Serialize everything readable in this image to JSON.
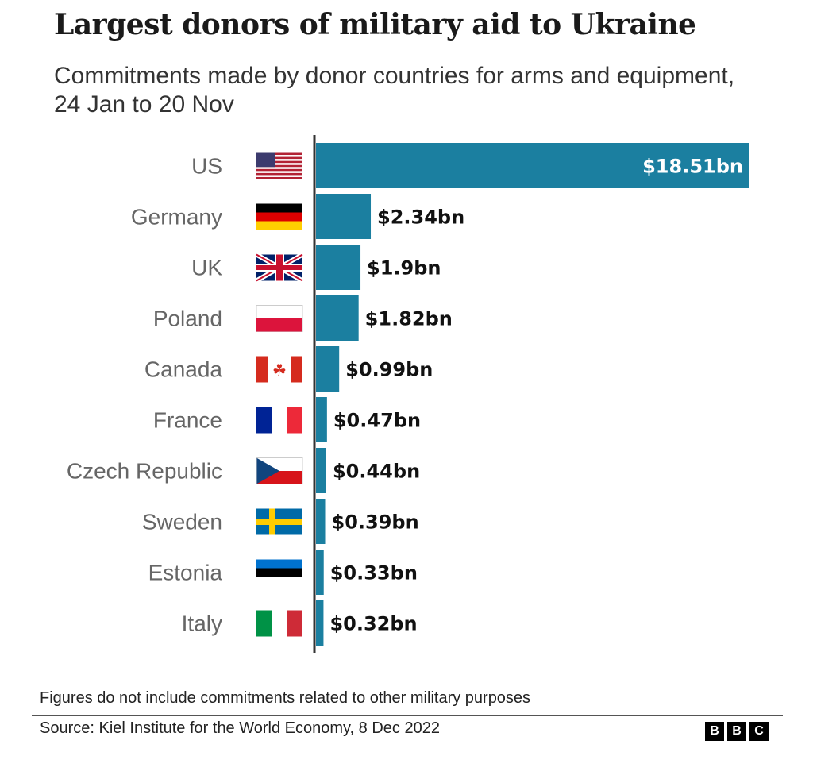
{
  "chart_data": {
    "type": "bar",
    "orientation": "horizontal",
    "title": "Largest donors of military aid to Ukraine",
    "subtitle": "Commitments made by donor countries for arms and equipment, 24 Jan to 20 Nov",
    "unit": "$bn",
    "categories": [
      "US",
      "Germany",
      "UK",
      "Poland",
      "Canada",
      "France",
      "Czech Republic",
      "Sweden",
      "Estonia",
      "Italy"
    ],
    "flags": [
      "us",
      "de",
      "uk",
      "pl",
      "ca",
      "fr",
      "cz",
      "se",
      "ee",
      "it"
    ],
    "values": [
      18.51,
      2.34,
      1.9,
      1.82,
      0.99,
      0.47,
      0.44,
      0.39,
      0.33,
      0.32
    ],
    "value_labels": [
      "$18.51bn",
      "$2.34bn",
      "$1.9bn",
      "$1.82bn",
      "$0.99bn",
      "$0.47bn",
      "$0.44bn",
      "$0.39bn",
      "$0.33bn",
      "$0.32bn"
    ],
    "xlim": [
      0,
      18.51
    ],
    "bar_color": "#1b7fa0",
    "grid": false
  },
  "footer": {
    "note": "Figures do not include commitments related to other military purposes",
    "source": "Source: Kiel Institute for the World Economy, 8 Dec 2022",
    "logo": [
      "B",
      "B",
      "C"
    ]
  }
}
